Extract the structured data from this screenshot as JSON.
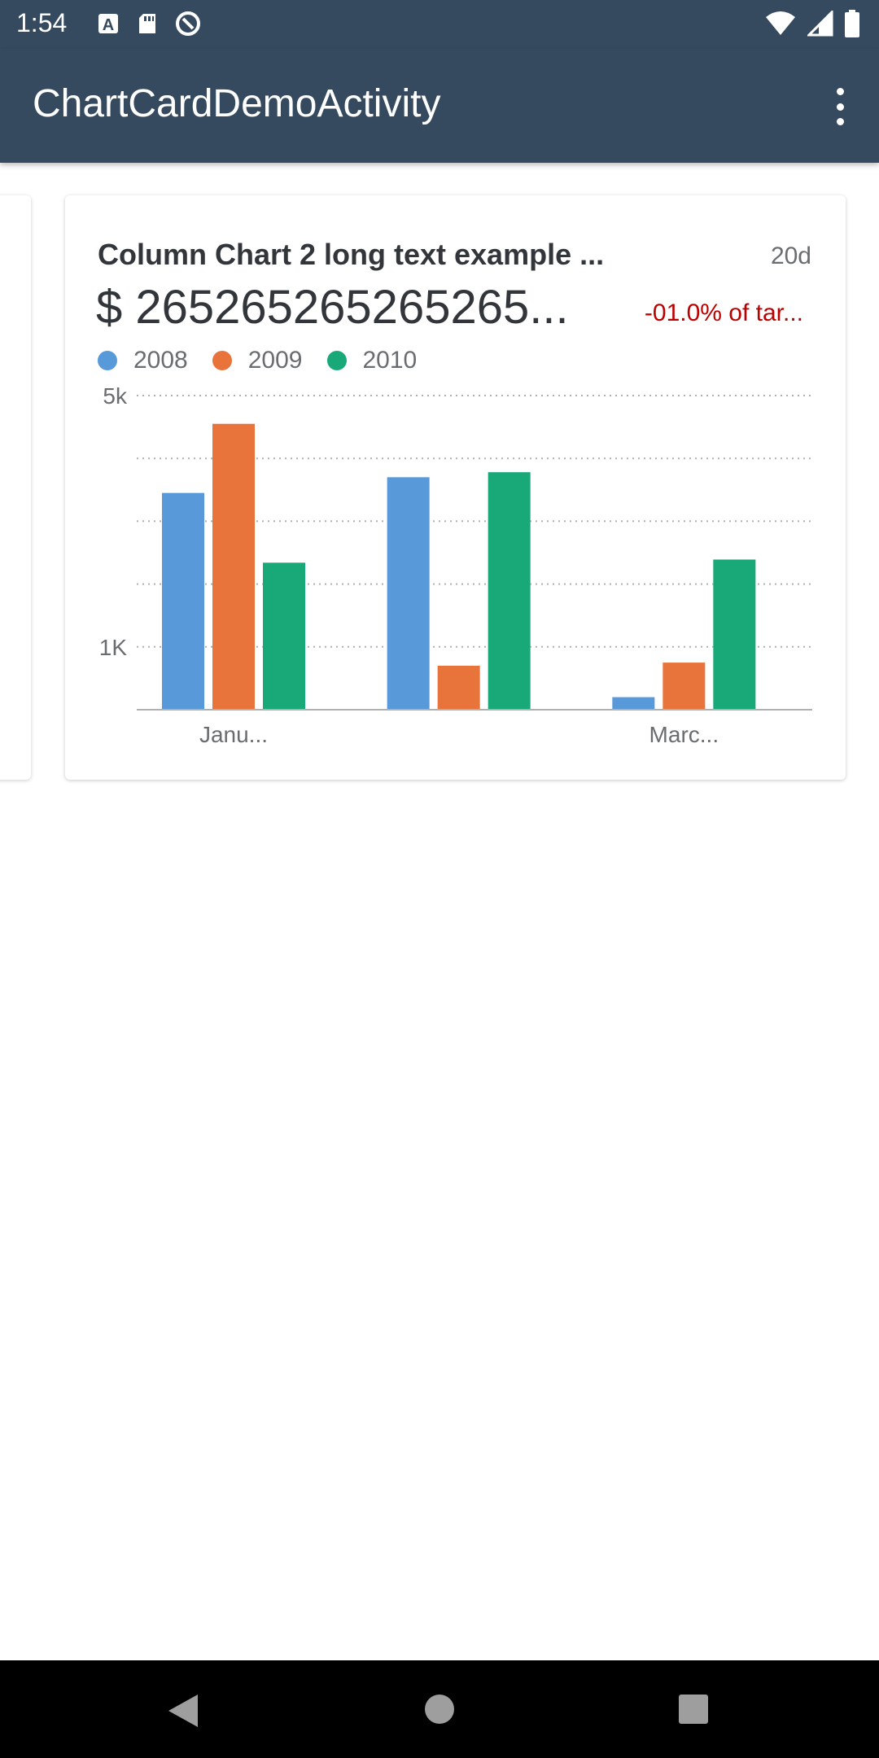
{
  "status_bar": {
    "time": "1:54",
    "left_icons": [
      "a-letter-icon",
      "sd-card-icon",
      "sync-icon"
    ],
    "right_icons": [
      "wifi-icon",
      "signal-icon",
      "battery-icon"
    ]
  },
  "app_bar": {
    "title": "ChartCardDemoActivity",
    "menu_icon": "more-vert-icon",
    "color": "#354a5f"
  },
  "card": {
    "title": "Column Chart 2 long text example ...",
    "age": "20d",
    "value": "$ 265265265265265...",
    "delta": "-01.0% of tar...",
    "delta_color": "#bb0000"
  },
  "chart_data": {
    "type": "bar",
    "categories": [
      "Janu...",
      "",
      "Marc..."
    ],
    "series": [
      {
        "name": "2008",
        "color": "#5899da",
        "values": [
          3450,
          3700,
          200
        ]
      },
      {
        "name": "2009",
        "color": "#e8743b",
        "values": [
          4550,
          700,
          750
        ]
      },
      {
        "name": "2010",
        "color": "#19a979",
        "values": [
          2340,
          3780,
          2390
        ]
      }
    ],
    "ylim": [
      0,
      5000
    ],
    "y_ticks": [
      {
        "value": 5000,
        "label": "5k"
      },
      {
        "value": 4000,
        "label": ""
      },
      {
        "value": 3000,
        "label": ""
      },
      {
        "value": 2000,
        "label": ""
      },
      {
        "value": 1000,
        "label": "1K"
      }
    ],
    "grid": true,
    "legend": "top-left"
  },
  "nav_bar": {
    "back_icon": "back-triangle-icon",
    "home_icon": "home-circle-icon",
    "recents_icon": "recents-square-icon"
  }
}
